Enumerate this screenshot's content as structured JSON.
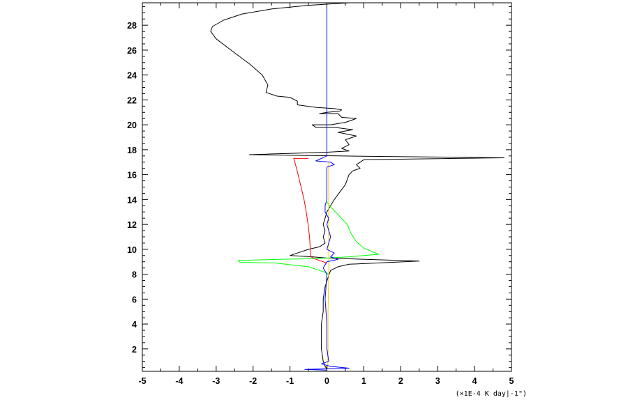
{
  "chart_data": {
    "type": "line",
    "title": "",
    "xlabel": "(×1E-4 K day|-1\")",
    "ylabel": "",
    "xlim": [
      -5,
      5
    ],
    "ylim": [
      0.2,
      29.8
    ],
    "grid": false,
    "x_ticks": [
      -5,
      -4,
      -3,
      -2,
      -1,
      0,
      1,
      2,
      3,
      4,
      5
    ],
    "y_ticks": [
      2,
      4,
      6,
      8,
      10,
      12,
      14,
      16,
      18,
      20,
      22,
      24,
      26,
      28
    ],
    "series": [
      {
        "color": "#000000",
        "points": [
          [
            0.6,
            29.8
          ],
          [
            -0.5,
            29.6
          ],
          [
            -1.5,
            29.3
          ],
          [
            -2.3,
            28.9
          ],
          [
            -2.8,
            28.4
          ],
          [
            -3.1,
            27.9
          ],
          [
            -3.15,
            27.5
          ],
          [
            -3.0,
            26.9
          ],
          [
            -2.6,
            26.0
          ],
          [
            -2.1,
            24.9
          ],
          [
            -1.75,
            24.0
          ],
          [
            -1.6,
            23.2
          ],
          [
            -1.65,
            22.6
          ],
          [
            -1.35,
            22.3
          ],
          [
            -1.0,
            22.2
          ],
          [
            -0.8,
            21.9
          ],
          [
            -0.8,
            21.6
          ],
          [
            -0.3,
            21.4
          ],
          [
            0.2,
            21.3
          ],
          [
            0.4,
            21.2
          ],
          [
            0.35,
            21.1
          ],
          [
            0.0,
            21.0
          ],
          [
            -0.2,
            20.9
          ],
          [
            0.3,
            20.9
          ],
          [
            0.4,
            20.6
          ],
          [
            0.8,
            20.5
          ],
          [
            0.5,
            20.2
          ],
          [
            0.1,
            20.0
          ],
          [
            -0.4,
            20.0
          ],
          [
            -0.3,
            19.8
          ],
          [
            0.2,
            19.8
          ],
          [
            0.7,
            19.6
          ],
          [
            0.3,
            19.4
          ],
          [
            0.8,
            19.1
          ],
          [
            0.5,
            18.8
          ],
          [
            0.6,
            18.4
          ],
          [
            0.4,
            18.1
          ],
          [
            0.6,
            17.9
          ],
          [
            0.0,
            17.8
          ],
          [
            -2.1,
            17.6
          ],
          [
            0.3,
            17.5
          ],
          [
            4.8,
            17.35
          ],
          [
            1.0,
            17.2
          ],
          [
            0.9,
            17.0
          ],
          [
            0.8,
            16.8
          ],
          [
            0.9,
            16.5
          ],
          [
            0.7,
            16.3
          ],
          [
            0.6,
            16.0
          ],
          [
            0.55,
            15.6
          ],
          [
            0.5,
            15.2
          ],
          [
            0.4,
            14.8
          ],
          [
            0.3,
            14.4
          ],
          [
            0.2,
            14.0
          ],
          [
            0.1,
            13.5
          ],
          [
            0.0,
            13.0
          ],
          [
            -0.05,
            12.5
          ],
          [
            -0.1,
            12.0
          ],
          [
            -0.05,
            11.5
          ],
          [
            -0.1,
            11.0
          ],
          [
            -0.05,
            10.5
          ],
          [
            -0.2,
            10.2
          ],
          [
            -0.5,
            10.0
          ],
          [
            -0.8,
            9.7
          ],
          [
            -1.0,
            9.5
          ],
          [
            -0.4,
            9.4
          ],
          [
            0.0,
            9.3
          ],
          [
            2.5,
            9.05
          ],
          [
            0.6,
            8.8
          ],
          [
            0.3,
            8.6
          ],
          [
            0.1,
            8.3
          ],
          [
            0.05,
            7.9
          ],
          [
            -0.05,
            7.0
          ],
          [
            -0.1,
            6.0
          ],
          [
            -0.1,
            5.0
          ],
          [
            -0.15,
            4.0
          ],
          [
            -0.15,
            3.0
          ],
          [
            -0.15,
            2.0
          ],
          [
            -0.1,
            1.0
          ],
          [
            -0.05,
            0.6
          ],
          [
            0.0,
            0.4
          ]
        ]
      },
      {
        "color": "#ff0000",
        "points": [
          [
            -0.5,
            17.3
          ],
          [
            -0.9,
            17.3
          ],
          [
            -0.85,
            16.8
          ],
          [
            -0.78,
            16.0
          ],
          [
            -0.7,
            15.0
          ],
          [
            -0.62,
            14.0
          ],
          [
            -0.56,
            13.0
          ],
          [
            -0.51,
            12.0
          ],
          [
            -0.47,
            11.0
          ],
          [
            -0.45,
            10.0
          ],
          [
            -0.44,
            9.4
          ],
          [
            -0.3,
            9.2
          ],
          [
            -0.1,
            9.0
          ],
          [
            0.0,
            8.9
          ]
        ]
      },
      {
        "color": "#00ff00",
        "points": [
          [
            0.0,
            13.8
          ],
          [
            0.1,
            13.4
          ],
          [
            0.3,
            12.8
          ],
          [
            0.55,
            12.0
          ],
          [
            0.65,
            11.3
          ],
          [
            0.8,
            10.6
          ],
          [
            1.0,
            10.1
          ],
          [
            1.4,
            9.6
          ],
          [
            0.6,
            9.4
          ],
          [
            -0.3,
            9.25
          ],
          [
            -1.3,
            9.2
          ],
          [
            -2.4,
            9.1
          ],
          [
            -2.35,
            8.95
          ],
          [
            -1.4,
            8.9
          ],
          [
            -0.5,
            8.6
          ],
          [
            0.0,
            8.1
          ],
          [
            0.05,
            7.9
          ]
        ]
      },
      {
        "color": "#ffcc00",
        "points": [
          [
            0.05,
            17.0
          ],
          [
            0.05,
            14.0
          ],
          [
            0.05,
            10.0
          ],
          [
            0.05,
            8.0
          ],
          [
            0.03,
            5.0
          ],
          [
            0.03,
            2.0
          ],
          [
            0.02,
            0.4
          ]
        ]
      },
      {
        "color": "#0000ff",
        "points": [
          [
            0.0,
            29.8
          ],
          [
            0.0,
            17.5
          ],
          [
            -0.3,
            17.1
          ],
          [
            0.1,
            17.0
          ],
          [
            0.2,
            16.8
          ],
          [
            0.0,
            16.6
          ],
          [
            0.0,
            14.0
          ],
          [
            -0.05,
            13.5
          ],
          [
            -0.05,
            13.0
          ],
          [
            0.05,
            12.5
          ],
          [
            0.0,
            12.0
          ],
          [
            0.1,
            11.0
          ],
          [
            0.05,
            10.5
          ],
          [
            0.0,
            10.0
          ],
          [
            0.2,
            9.7
          ],
          [
            0.1,
            9.4
          ],
          [
            0.3,
            9.2
          ],
          [
            0.0,
            9.0
          ],
          [
            -0.1,
            8.5
          ],
          [
            0.0,
            8.0
          ],
          [
            -0.05,
            6.0
          ],
          [
            0.0,
            4.0
          ],
          [
            0.0,
            2.0
          ],
          [
            0.05,
            1.0
          ],
          [
            -0.15,
            0.8
          ],
          [
            0.1,
            0.6
          ],
          [
            0.6,
            0.45
          ],
          [
            -0.6,
            0.35
          ],
          [
            0.0,
            0.3
          ]
        ]
      }
    ]
  }
}
